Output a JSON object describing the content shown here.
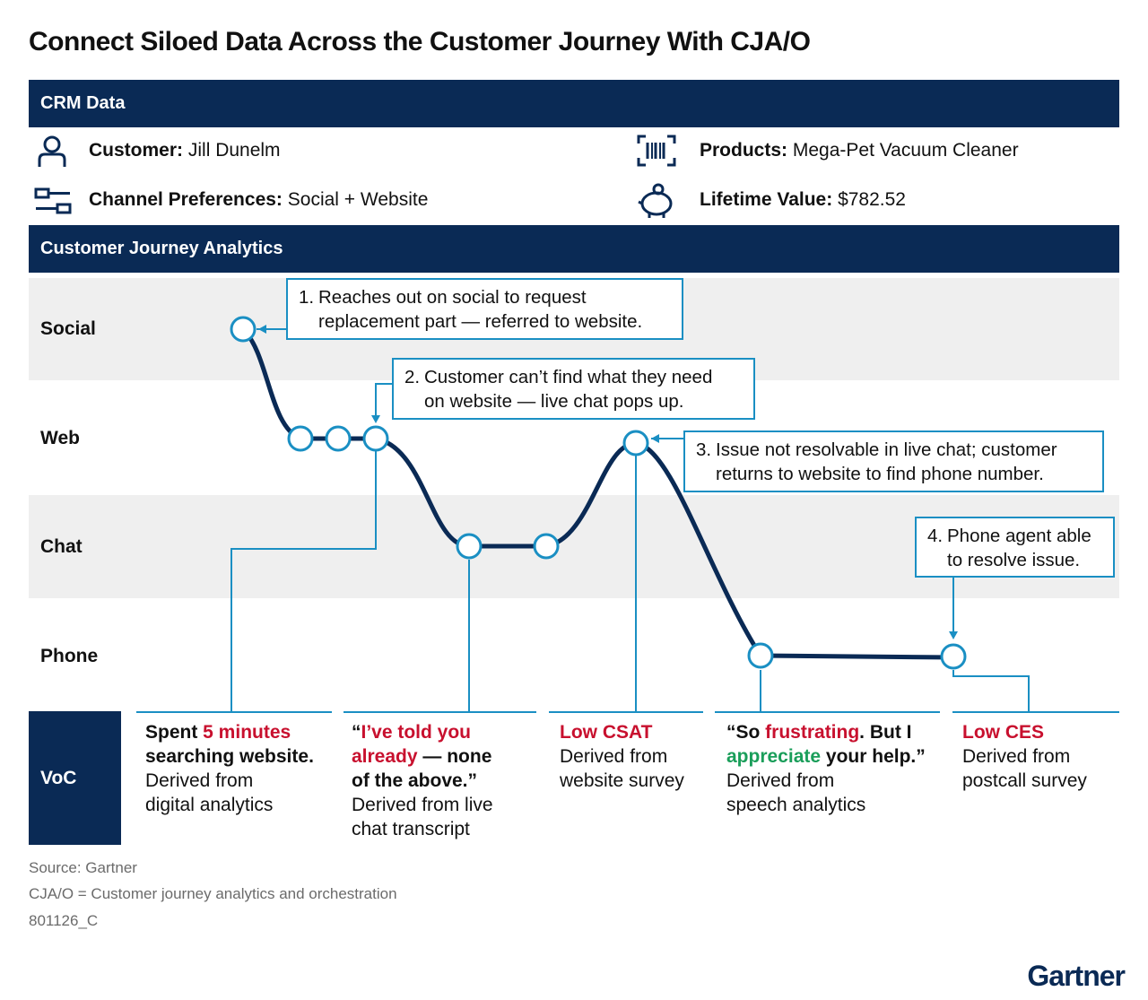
{
  "title": "Connect Siloed Data Across the Customer Journey With CJA/O",
  "crm": {
    "header": "CRM Data",
    "customer_label": "Customer:",
    "customer_value": "Jill Dunelm",
    "channel_label": "Channel Preferences:",
    "channel_value": "Social + Website",
    "products_label": "Products:",
    "products_value": "Mega-Pet Vacuum Cleaner",
    "ltv_label": "Lifetime Value:",
    "ltv_value": "$782.52"
  },
  "cja": {
    "header": "Customer Journey Analytics",
    "lanes": [
      "Social",
      "Web",
      "Chat",
      "Phone"
    ]
  },
  "callouts": [
    {
      "num": "1.",
      "line1": "Reaches out on social to request",
      "line2": "replacement part — referred to website."
    },
    {
      "num": "2.",
      "line1": "Customer can’t find what they need",
      "line2": "on website — live chat pops up."
    },
    {
      "num": "3.",
      "line1": "Issue not resolvable in live chat; customer",
      "line2": "returns to website to find phone number."
    },
    {
      "num": "4.",
      "line1": "Phone agent able",
      "line2": "to resolve issue."
    }
  ],
  "voc": {
    "label": "VoC",
    "items": [
      {
        "a": "Spent ",
        "b": "5 minutes",
        "c": "searching website.",
        "d": "Derived from",
        "e": "digital analytics"
      },
      {
        "a": "“",
        "b": "I’ve told you",
        "c": "already",
        "d": " — none",
        "e": "of the above.”",
        "f": "Derived from live",
        "g": "chat transcript"
      },
      {
        "a": "Low CSAT",
        "b": "Derived from",
        "c": "website survey"
      },
      {
        "a": "“So ",
        "b": "frustrating",
        "c": ". But I",
        "d": "appreciate",
        "e": " your help.”",
        "f": "Derived from",
        "g": "speech analytics"
      },
      {
        "a": "Low CES",
        "b": "Derived from",
        "c": "postcall survey"
      }
    ]
  },
  "footer": {
    "source": "Source: Gartner",
    "note": "CJA/O = Customer journey analytics and orchestration",
    "id": "801126_C"
  },
  "logo": "Gartner",
  "colors": {
    "navy": "#0a2a55",
    "accent": "#1a8fc3",
    "red": "#c8102e",
    "green": "#1a9e5a",
    "band": "#efefef"
  }
}
